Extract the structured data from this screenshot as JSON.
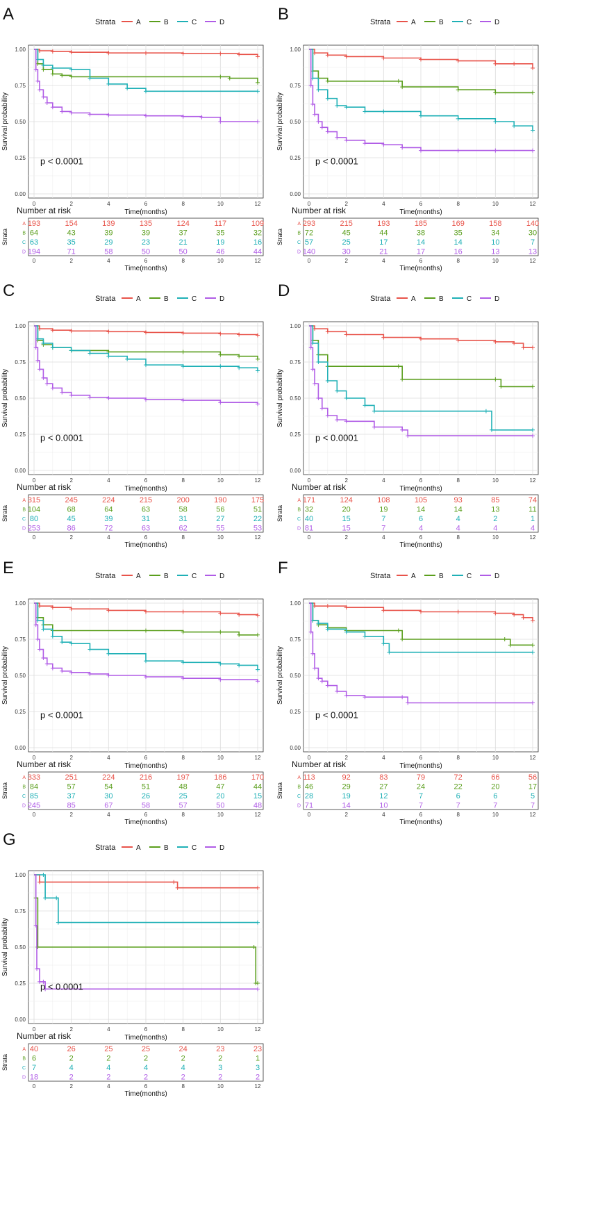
{
  "figure": {
    "legend_title": "Strata",
    "strata": [
      "A",
      "B",
      "C",
      "D"
    ],
    "colors": {
      "A": "#e8534a",
      "B": "#5a9e1c",
      "C": "#1fb0b6",
      "D": "#b05ce6"
    },
    "shared": {
      "ylabel": "Survival probability",
      "xlabel": "Time(months)",
      "yticks": [
        "0.00",
        "0.25",
        "0.50",
        "0.75",
        "1.00"
      ],
      "xticks": [
        "0",
        "2",
        "4",
        "6",
        "8",
        "10",
        "12"
      ],
      "risk_title": "Number at risk",
      "risk_ylabel": "Strata",
      "p_text": "p < 0.0001"
    }
  },
  "chart_data": [
    {
      "panel": "A",
      "type": "line",
      "xlim": [
        0,
        12
      ],
      "ylim": [
        0,
        1
      ],
      "series": [
        {
          "name": "A",
          "x": [
            0,
            0.3,
            1,
            2,
            4,
            6,
            8,
            10,
            11,
            12
          ],
          "y": [
            1,
            0.99,
            0.985,
            0.98,
            0.975,
            0.975,
            0.97,
            0.97,
            0.965,
            0.95
          ]
        },
        {
          "name": "B",
          "x": [
            0,
            0.2,
            0.5,
            1,
            1.5,
            2,
            10,
            10.5,
            12
          ],
          "y": [
            1,
            0.9,
            0.86,
            0.83,
            0.82,
            0.81,
            0.81,
            0.8,
            0.77
          ]
        },
        {
          "name": "C",
          "x": [
            0,
            0.2,
            0.5,
            1,
            2,
            3,
            4,
            5,
            6,
            12
          ],
          "y": [
            1,
            0.93,
            0.89,
            0.87,
            0.86,
            0.8,
            0.76,
            0.73,
            0.71,
            0.71
          ]
        },
        {
          "name": "D",
          "x": [
            0,
            0.1,
            0.2,
            0.3,
            0.5,
            0.7,
            1,
            1.5,
            2,
            3,
            4,
            6,
            8,
            9,
            10,
            12
          ],
          "y": [
            1,
            0.86,
            0.78,
            0.72,
            0.67,
            0.63,
            0.6,
            0.57,
            0.56,
            0.55,
            0.545,
            0.54,
            0.535,
            0.53,
            0.5,
            0.5
          ]
        }
      ],
      "risk": {
        "A": [
          "193",
          "154",
          "139",
          "135",
          "124",
          "117",
          "109"
        ],
        "B": [
          "64",
          "43",
          "39",
          "39",
          "37",
          "35",
          "32"
        ],
        "C": [
          "63",
          "35",
          "29",
          "23",
          "21",
          "19",
          "16"
        ],
        "D": [
          "194",
          "71",
          "58",
          "50",
          "50",
          "46",
          "44"
        ]
      }
    },
    {
      "panel": "B",
      "type": "line",
      "xlim": [
        0,
        12
      ],
      "ylim": [
        0,
        1
      ],
      "series": [
        {
          "name": "A",
          "x": [
            0,
            0.3,
            1,
            2,
            4,
            6,
            8,
            10,
            11,
            12
          ],
          "y": [
            1,
            0.975,
            0.96,
            0.95,
            0.94,
            0.93,
            0.92,
            0.9,
            0.9,
            0.87
          ]
        },
        {
          "name": "B",
          "x": [
            0,
            0.2,
            0.5,
            1,
            4.8,
            5,
            8,
            10,
            12
          ],
          "y": [
            1,
            0.85,
            0.8,
            0.78,
            0.78,
            0.74,
            0.72,
            0.7,
            0.7
          ]
        },
        {
          "name": "C",
          "x": [
            0,
            0.2,
            0.5,
            1,
            1.5,
            2,
            3,
            4,
            6,
            8,
            10,
            11,
            12
          ],
          "y": [
            1,
            0.8,
            0.72,
            0.66,
            0.61,
            0.6,
            0.57,
            0.57,
            0.54,
            0.52,
            0.5,
            0.47,
            0.44
          ]
        },
        {
          "name": "D",
          "x": [
            0,
            0.1,
            0.2,
            0.3,
            0.5,
            0.7,
            1,
            1.5,
            2,
            3,
            4,
            5,
            6,
            8,
            10,
            12
          ],
          "y": [
            1,
            0.75,
            0.62,
            0.55,
            0.5,
            0.46,
            0.43,
            0.39,
            0.37,
            0.35,
            0.34,
            0.32,
            0.3,
            0.3,
            0.3,
            0.3
          ]
        }
      ],
      "risk": {
        "A": [
          "293",
          "215",
          "193",
          "185",
          "169",
          "158",
          "140"
        ],
        "B": [
          "72",
          "45",
          "44",
          "38",
          "35",
          "34",
          "30"
        ],
        "C": [
          "57",
          "25",
          "17",
          "14",
          "14",
          "10",
          "7"
        ],
        "D": [
          "140",
          "30",
          "21",
          "17",
          "16",
          "13",
          "13"
        ]
      }
    },
    {
      "panel": "C",
      "type": "line",
      "xlim": [
        0,
        12
      ],
      "ylim": [
        0,
        1
      ],
      "series": [
        {
          "name": "A",
          "x": [
            0,
            0.3,
            1,
            2,
            4,
            6,
            8,
            10,
            11,
            12
          ],
          "y": [
            1,
            0.98,
            0.97,
            0.965,
            0.96,
            0.955,
            0.95,
            0.945,
            0.94,
            0.935
          ]
        },
        {
          "name": "B",
          "x": [
            0,
            0.2,
            0.5,
            1,
            2,
            4,
            8,
            10,
            11,
            12
          ],
          "y": [
            1,
            0.9,
            0.87,
            0.85,
            0.83,
            0.82,
            0.82,
            0.8,
            0.79,
            0.77
          ]
        },
        {
          "name": "C",
          "x": [
            0,
            0.2,
            0.5,
            1,
            2,
            3,
            4,
            5,
            6,
            8,
            10,
            11,
            12
          ],
          "y": [
            1,
            0.91,
            0.88,
            0.85,
            0.83,
            0.81,
            0.79,
            0.77,
            0.73,
            0.72,
            0.72,
            0.71,
            0.69
          ]
        },
        {
          "name": "D",
          "x": [
            0,
            0.1,
            0.2,
            0.3,
            0.5,
            0.7,
            1,
            1.5,
            2,
            3,
            4,
            6,
            8,
            10,
            12
          ],
          "y": [
            1,
            0.85,
            0.76,
            0.7,
            0.64,
            0.6,
            0.57,
            0.54,
            0.52,
            0.505,
            0.5,
            0.49,
            0.485,
            0.47,
            0.46
          ]
        }
      ],
      "risk": {
        "A": [
          "315",
          "245",
          "224",
          "215",
          "200",
          "190",
          "175"
        ],
        "B": [
          "104",
          "68",
          "64",
          "63",
          "58",
          "56",
          "51"
        ],
        "C": [
          "80",
          "45",
          "39",
          "31",
          "31",
          "27",
          "22"
        ],
        "D": [
          "253",
          "86",
          "72",
          "63",
          "62",
          "55",
          "53"
        ]
      }
    },
    {
      "panel": "D",
      "type": "line",
      "xlim": [
        0,
        12
      ],
      "ylim": [
        0,
        1
      ],
      "series": [
        {
          "name": "A",
          "x": [
            0,
            0.3,
            1,
            2,
            4,
            6,
            8,
            10,
            11,
            11.5,
            12
          ],
          "y": [
            1,
            0.98,
            0.96,
            0.94,
            0.92,
            0.91,
            0.9,
            0.89,
            0.88,
            0.85,
            0.85
          ]
        },
        {
          "name": "B",
          "x": [
            0,
            0.2,
            0.5,
            1,
            4.8,
            5,
            10,
            10.3,
            12
          ],
          "y": [
            1,
            0.9,
            0.8,
            0.72,
            0.72,
            0.63,
            0.63,
            0.58,
            0.58
          ]
        },
        {
          "name": "C",
          "x": [
            0,
            0.2,
            0.5,
            1,
            1.5,
            2,
            3,
            3.5,
            9.5,
            9.8,
            12
          ],
          "y": [
            1,
            0.88,
            0.75,
            0.62,
            0.55,
            0.5,
            0.45,
            0.41,
            0.41,
            0.28,
            0.28
          ]
        },
        {
          "name": "D",
          "x": [
            0,
            0.1,
            0.2,
            0.3,
            0.5,
            0.7,
            1,
            1.5,
            2,
            3.5,
            5,
            5.3,
            12
          ],
          "y": [
            1,
            0.85,
            0.7,
            0.6,
            0.5,
            0.43,
            0.38,
            0.35,
            0.34,
            0.3,
            0.28,
            0.24,
            0.24
          ]
        }
      ],
      "risk": {
        "A": [
          "171",
          "124",
          "108",
          "105",
          "93",
          "85",
          "74"
        ],
        "B": [
          "32",
          "20",
          "19",
          "14",
          "14",
          "13",
          "11"
        ],
        "C": [
          "40",
          "15",
          "7",
          "6",
          "4",
          "2",
          "1"
        ],
        "D": [
          "81",
          "15",
          "7",
          "4",
          "4",
          "4",
          "4"
        ]
      }
    },
    {
      "panel": "E",
      "type": "line",
      "xlim": [
        0,
        12
      ],
      "ylim": [
        0,
        1
      ],
      "series": [
        {
          "name": "A",
          "x": [
            0,
            0.3,
            1,
            2,
            4,
            6,
            8,
            10,
            11,
            12
          ],
          "y": [
            1,
            0.98,
            0.97,
            0.96,
            0.95,
            0.94,
            0.94,
            0.93,
            0.92,
            0.915
          ]
        },
        {
          "name": "B",
          "x": [
            0,
            0.2,
            0.5,
            1,
            6,
            8,
            10,
            11,
            12
          ],
          "y": [
            1,
            0.9,
            0.85,
            0.81,
            0.81,
            0.8,
            0.8,
            0.78,
            0.78
          ]
        },
        {
          "name": "C",
          "x": [
            0,
            0.2,
            0.5,
            1,
            1.5,
            2,
            3,
            4,
            6,
            8,
            10,
            11,
            12
          ],
          "y": [
            1,
            0.88,
            0.82,
            0.77,
            0.73,
            0.72,
            0.68,
            0.65,
            0.6,
            0.59,
            0.58,
            0.57,
            0.54
          ]
        },
        {
          "name": "D",
          "x": [
            0,
            0.1,
            0.2,
            0.3,
            0.5,
            0.7,
            1,
            1.5,
            2,
            3,
            4,
            6,
            8,
            10,
            12
          ],
          "y": [
            1,
            0.85,
            0.75,
            0.68,
            0.62,
            0.58,
            0.55,
            0.53,
            0.52,
            0.51,
            0.5,
            0.49,
            0.48,
            0.47,
            0.46
          ]
        }
      ],
      "risk": {
        "A": [
          "333",
          "251",
          "224",
          "216",
          "197",
          "186",
          "170"
        ],
        "B": [
          "84",
          "57",
          "54",
          "51",
          "48",
          "47",
          "44"
        ],
        "C": [
          "85",
          "37",
          "30",
          "26",
          "25",
          "20",
          "15"
        ],
        "D": [
          "245",
          "85",
          "67",
          "58",
          "57",
          "50",
          "48"
        ]
      }
    },
    {
      "panel": "F",
      "type": "line",
      "xlim": [
        0,
        12
      ],
      "ylim": [
        0,
        1
      ],
      "series": [
        {
          "name": "A",
          "x": [
            0,
            0.3,
            1,
            2,
            4,
            6,
            8,
            10,
            11,
            11.5,
            12
          ],
          "y": [
            1,
            0.98,
            0.98,
            0.97,
            0.95,
            0.94,
            0.94,
            0.93,
            0.92,
            0.9,
            0.88
          ]
        },
        {
          "name": "B",
          "x": [
            0,
            0.2,
            0.5,
            1,
            2,
            4.8,
            5,
            10.5,
            10.8,
            12
          ],
          "y": [
            1,
            0.88,
            0.85,
            0.83,
            0.81,
            0.81,
            0.75,
            0.75,
            0.71,
            0.71
          ]
        },
        {
          "name": "C",
          "x": [
            0,
            0.2,
            0.5,
            1,
            2,
            3,
            4,
            4.3,
            12
          ],
          "y": [
            1,
            0.88,
            0.86,
            0.82,
            0.8,
            0.77,
            0.72,
            0.66,
            0.66
          ]
        },
        {
          "name": "D",
          "x": [
            0,
            0.1,
            0.2,
            0.3,
            0.5,
            0.7,
            1,
            1.5,
            2,
            3,
            5,
            5.3,
            12
          ],
          "y": [
            1,
            0.8,
            0.65,
            0.55,
            0.48,
            0.46,
            0.43,
            0.39,
            0.36,
            0.35,
            0.35,
            0.31,
            0.31
          ]
        }
      ],
      "risk": {
        "A": [
          "113",
          "92",
          "83",
          "79",
          "72",
          "66",
          "56"
        ],
        "B": [
          "46",
          "29",
          "27",
          "24",
          "22",
          "20",
          "17"
        ],
        "C": [
          "28",
          "19",
          "12",
          "7",
          "6",
          "6",
          "5"
        ],
        "D": [
          "71",
          "14",
          "10",
          "7",
          "7",
          "7",
          "7"
        ]
      }
    },
    {
      "panel": "G",
      "type": "line",
      "xlim": [
        0,
        12
      ],
      "ylim": [
        0,
        1
      ],
      "series": [
        {
          "name": "A",
          "x": [
            0,
            0.3,
            7.5,
            7.7,
            12
          ],
          "y": [
            1,
            0.95,
            0.95,
            0.91,
            0.91
          ]
        },
        {
          "name": "B",
          "x": [
            0,
            0.1,
            0.2,
            11.8,
            11.9,
            12
          ],
          "y": [
            1,
            0.84,
            0.5,
            0.5,
            0.25,
            0.25
          ]
        },
        {
          "name": "C",
          "x": [
            0,
            0.5,
            0.6,
            1.2,
            1.3,
            12
          ],
          "y": [
            1,
            1,
            0.84,
            0.84,
            0.67,
            0.67
          ]
        },
        {
          "name": "D",
          "x": [
            0,
            0.1,
            0.15,
            0.3,
            0.5,
            0.6,
            12
          ],
          "y": [
            1,
            0.65,
            0.35,
            0.26,
            0.26,
            0.21,
            0.21
          ]
        }
      ],
      "risk": {
        "A": [
          "40",
          "26",
          "25",
          "25",
          "24",
          "23",
          "23"
        ],
        "B": [
          "6",
          "2",
          "2",
          "2",
          "2",
          "2",
          "1"
        ],
        "C": [
          "7",
          "4",
          "4",
          "4",
          "4",
          "3",
          "3"
        ],
        "D": [
          "18",
          "2",
          "2",
          "2",
          "2",
          "2",
          "2"
        ]
      }
    }
  ]
}
